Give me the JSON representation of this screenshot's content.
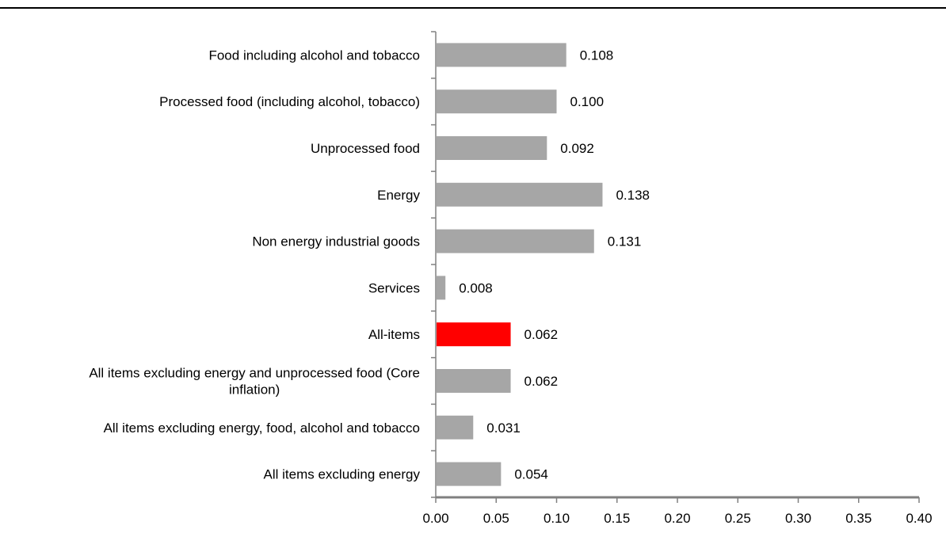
{
  "chart_data": {
    "type": "bar",
    "orientation": "horizontal",
    "categories": [
      "Food including alcohol and tobacco",
      "Processed food (including alcohol, tobacco)",
      "Unprocessed food",
      "Energy",
      "Non energy industrial goods",
      "Services",
      "All-items",
      "All items excluding energy and unprocessed food (Core inflation)",
      "All items excluding energy, food, alcohol and tobacco",
      "All items excluding energy"
    ],
    "category_lines": [
      [
        "Food including alcohol and tobacco"
      ],
      [
        "Processed food (including alcohol, tobacco)"
      ],
      [
        "Unprocessed food"
      ],
      [
        "Energy"
      ],
      [
        "Non energy industrial goods"
      ],
      [
        "Services"
      ],
      [
        "All-items"
      ],
      [
        "All items excluding energy and unprocessed food (Core",
        "inflation)"
      ],
      [
        "All items excluding energy, food, alcohol and tobacco"
      ],
      [
        "All items excluding energy"
      ]
    ],
    "values": [
      0.108,
      0.1,
      0.092,
      0.138,
      0.131,
      0.008,
      0.062,
      0.062,
      0.031,
      0.054
    ],
    "value_labels": [
      "0.108",
      "0.100",
      "0.092",
      "0.138",
      "0.131",
      "0.008",
      "0.062",
      "0.062",
      "0.031",
      "0.054"
    ],
    "highlight_index": 6,
    "colors": {
      "bar": "#a6a6a6",
      "highlight": "#ff0000",
      "axis": "#808080"
    },
    "x_ticks": [
      "0.00",
      "0.05",
      "0.10",
      "0.15",
      "0.20",
      "0.25",
      "0.30",
      "0.35",
      "0.40"
    ],
    "xlim": [
      0,
      0.4
    ],
    "title": "",
    "xlabel": "",
    "ylabel": "",
    "grid": false,
    "legend": "none"
  }
}
